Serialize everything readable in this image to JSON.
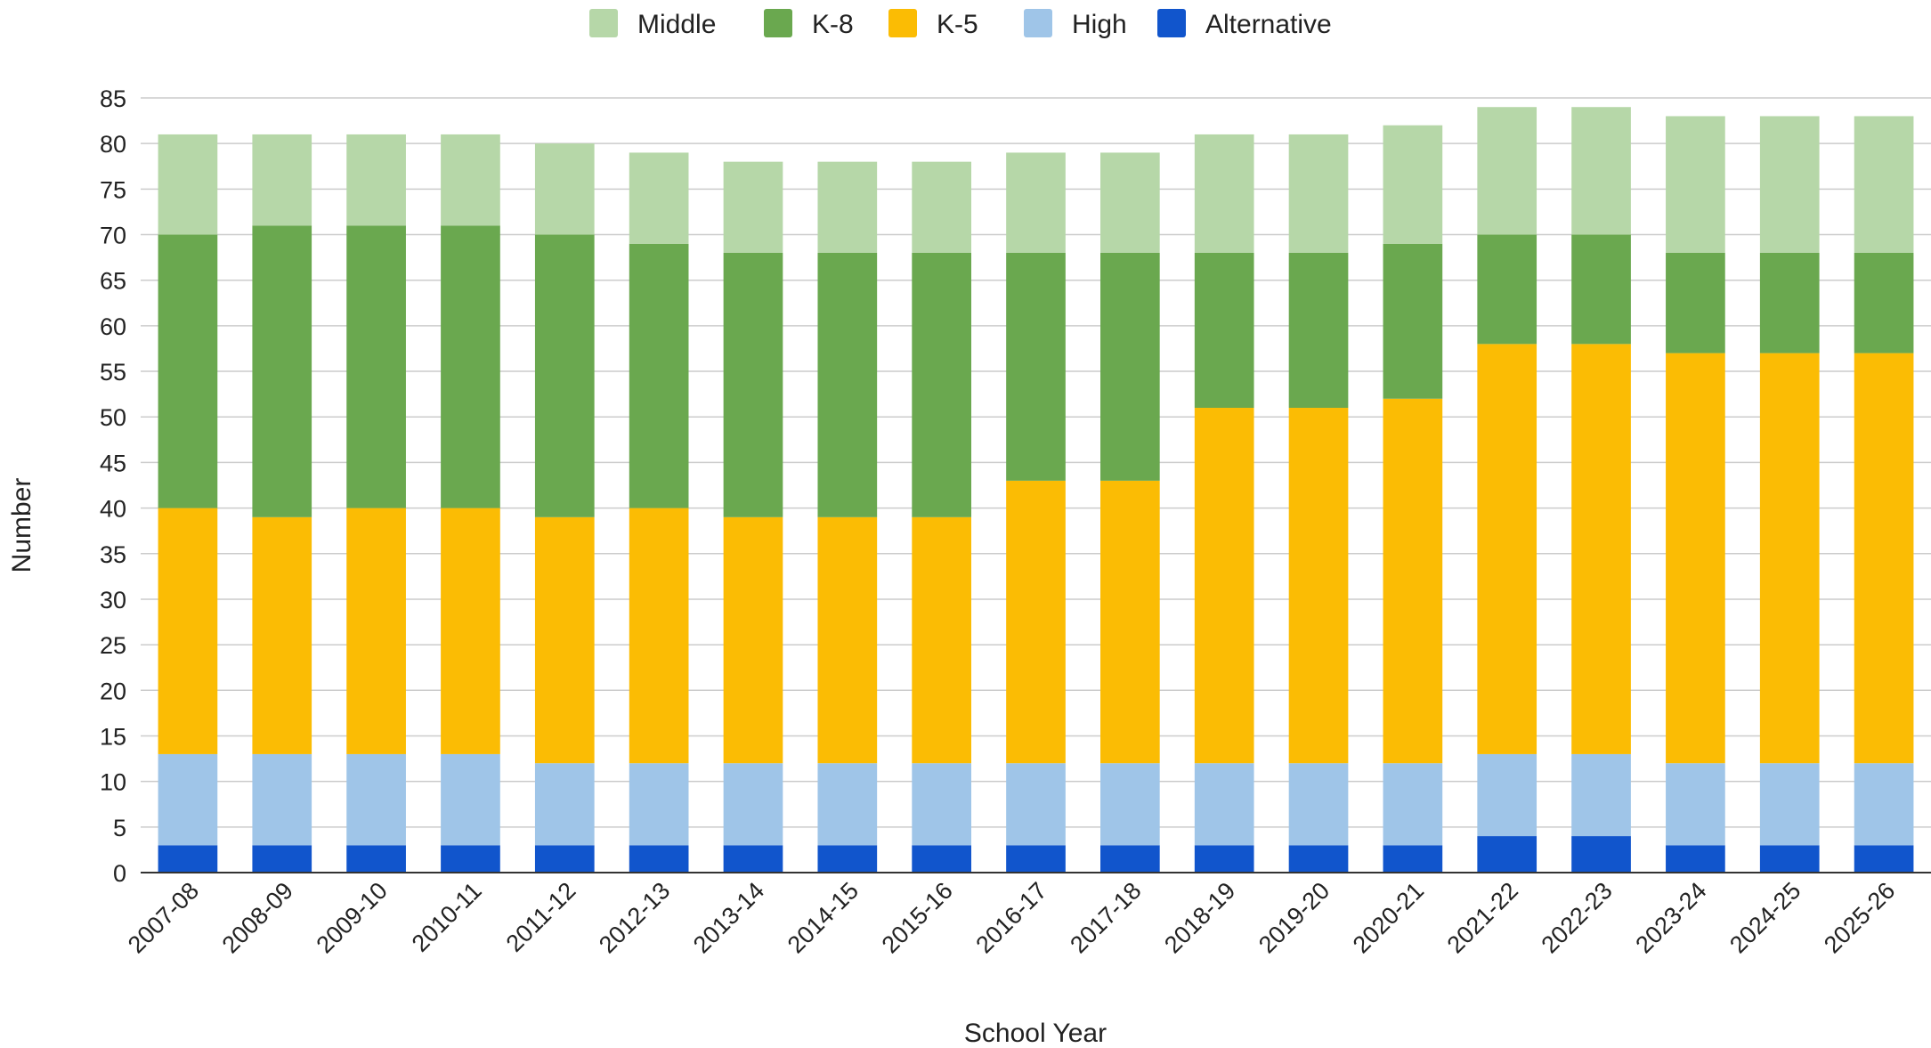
{
  "chart_data": {
    "type": "bar",
    "stacked": true,
    "title": "",
    "xlabel": "School Year",
    "ylabel": "Number",
    "ylim": [
      0,
      85
    ],
    "y_tick_step": 5,
    "grid": true,
    "legend_position": "top",
    "categories": [
      "2007-08",
      "2008-09",
      "2009-10",
      "2010-11",
      "2011-12",
      "2012-13",
      "2013-14",
      "2014-15",
      "2015-16",
      "2016-17",
      "2017-18",
      "2018-19",
      "2019-20",
      "2020-21",
      "2021-22",
      "2022-23",
      "2023-24",
      "2024-25",
      "2025-26"
    ],
    "series": [
      {
        "name": "Alternative",
        "color": "#1155cc",
        "values": [
          3,
          3,
          3,
          3,
          3,
          3,
          3,
          3,
          3,
          3,
          3,
          3,
          3,
          3,
          4,
          4,
          3,
          3,
          3
        ]
      },
      {
        "name": "High",
        "color": "#9fc5e8",
        "values": [
          10,
          10,
          10,
          10,
          9,
          9,
          9,
          9,
          9,
          9,
          9,
          9,
          9,
          9,
          9,
          9,
          9,
          9,
          9
        ]
      },
      {
        "name": "K-5",
        "color": "#fbbc04",
        "values": [
          27,
          26,
          27,
          27,
          27,
          28,
          27,
          27,
          27,
          31,
          31,
          39,
          39,
          40,
          45,
          45,
          45,
          45,
          45
        ]
      },
      {
        "name": "K-8",
        "color": "#6aa84f",
        "values": [
          30,
          32,
          31,
          31,
          31,
          29,
          29,
          29,
          29,
          25,
          25,
          17,
          17,
          17,
          12,
          12,
          11,
          11,
          11
        ]
      },
      {
        "name": "Middle",
        "color": "#b6d7a8",
        "values": [
          11,
          10,
          10,
          10,
          10,
          10,
          10,
          10,
          10,
          11,
          11,
          13,
          13,
          13,
          14,
          14,
          15,
          15,
          15
        ]
      }
    ],
    "legend_order": [
      "Middle",
      "K-8",
      "K-5",
      "High",
      "Alternative"
    ]
  }
}
